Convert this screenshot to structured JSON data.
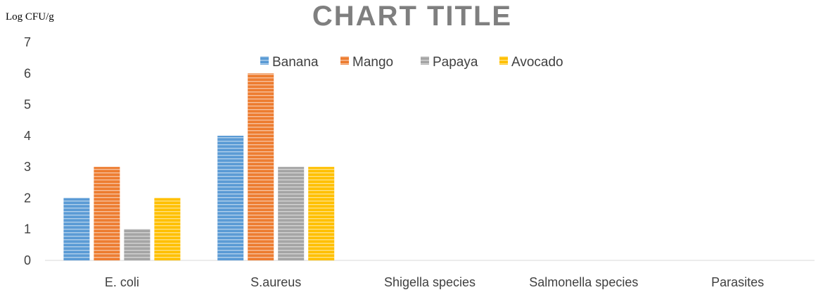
{
  "chart_data": {
    "type": "bar",
    "title": "CHART TITLE",
    "ylabel": "Log CFU/g",
    "xlabel": "",
    "categories": [
      "E. coli",
      "S.aureus",
      "Shigella species",
      "Salmonella species",
      "Parasites"
    ],
    "series": [
      {
        "name": "Banana",
        "values": [
          2,
          4,
          0,
          0,
          0
        ],
        "color": "#5b9bd5"
      },
      {
        "name": "Mango",
        "values": [
          3,
          6,
          0,
          0,
          0
        ],
        "color": "#ed7d31"
      },
      {
        "name": "Papaya",
        "values": [
          1,
          3,
          0,
          0,
          0
        ],
        "color": "#a5a5a5"
      },
      {
        "name": "Avocado",
        "values": [
          2,
          3,
          0,
          0,
          0
        ],
        "color": "#ffc000"
      }
    ],
    "ylim": [
      0,
      7
    ],
    "yticks": [
      0,
      1,
      2,
      3,
      4,
      5,
      6,
      7
    ],
    "grid": false,
    "legend": "top-center"
  }
}
